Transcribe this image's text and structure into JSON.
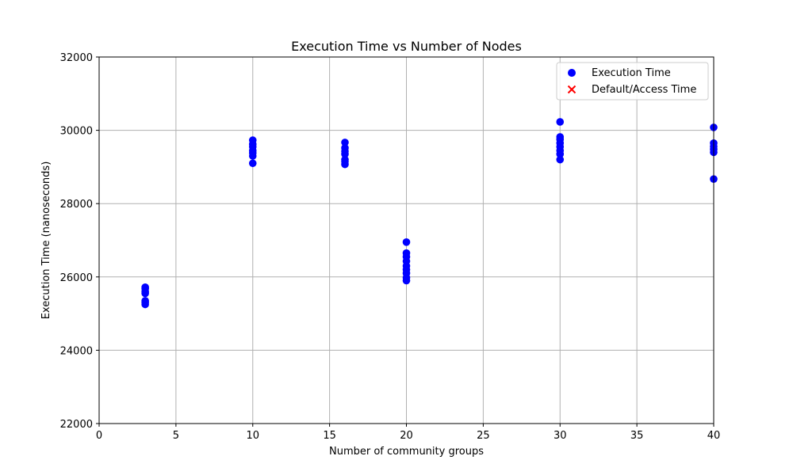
{
  "chart_data": {
    "type": "scatter",
    "title": "Execution Time vs Number of Nodes",
    "xlabel": "Number of community groups",
    "ylabel": "Execution Time (nanoseconds)",
    "xlim": [
      0,
      40
    ],
    "ylim": [
      22000,
      32000
    ],
    "xticks": [
      "0",
      "5",
      "10",
      "15",
      "20",
      "25",
      "30",
      "35",
      "40"
    ],
    "yticks": [
      "22000",
      "24000",
      "26000",
      "28000",
      "30000",
      "32000"
    ],
    "grid": true,
    "legend_position": "top-right",
    "series": [
      {
        "name": "Execution Time",
        "marker": "circle",
        "color": "#0000ff",
        "points": [
          [
            3,
            25250
          ],
          [
            3,
            25300
          ],
          [
            3,
            25350
          ],
          [
            3,
            25550
          ],
          [
            3,
            25600
          ],
          [
            3,
            25680
          ],
          [
            3,
            25720
          ],
          [
            10,
            29100
          ],
          [
            10,
            29300
          ],
          [
            10,
            29380
          ],
          [
            10,
            29450
          ],
          [
            10,
            29550
          ],
          [
            10,
            29620
          ],
          [
            10,
            29730
          ],
          [
            16,
            29070
          ],
          [
            16,
            29150
          ],
          [
            16,
            29200
          ],
          [
            16,
            29350
          ],
          [
            16,
            29430
          ],
          [
            16,
            29520
          ],
          [
            16,
            29670
          ],
          [
            20,
            25900
          ],
          [
            20,
            25980
          ],
          [
            20,
            26100
          ],
          [
            20,
            26200
          ],
          [
            20,
            26300
          ],
          [
            20,
            26430
          ],
          [
            20,
            26550
          ],
          [
            20,
            26650
          ],
          [
            20,
            26950
          ],
          [
            30,
            29200
          ],
          [
            30,
            29350
          ],
          [
            30,
            29450
          ],
          [
            30,
            29550
          ],
          [
            30,
            29650
          ],
          [
            30,
            29750
          ],
          [
            30,
            29820
          ],
          [
            30,
            30230
          ],
          [
            40,
            28670
          ],
          [
            40,
            29400
          ],
          [
            40,
            29480
          ],
          [
            40,
            29560
          ],
          [
            40,
            29650
          ],
          [
            40,
            30080
          ]
        ]
      },
      {
        "name": "Default/Access Time",
        "marker": "x",
        "color": "#ff0000",
        "points": []
      }
    ]
  }
}
